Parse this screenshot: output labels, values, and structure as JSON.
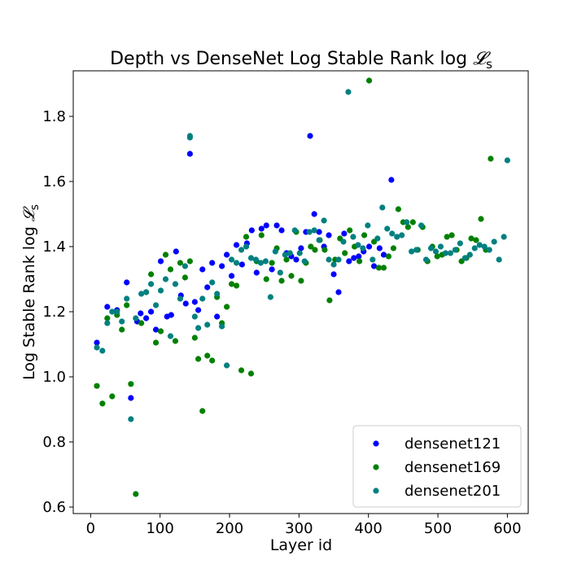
{
  "chart_data": {
    "type": "scatter",
    "title": "Depth vs DenseNet Log Stable Rank log 𝓛ₛ",
    "title_main": "Depth vs DenseNet Log Stable Rank log ",
    "title_symbol": "𝓛",
    "title_sub": "s",
    "xlabel": "Layer id",
    "ylabel": "Log Stable Rank log 𝓛ₛ",
    "ylabel_main": "Log Stable Rank log ",
    "ylabel_symbol": "𝓛",
    "ylabel_sub": "s",
    "xlim": [
      -25,
      630
    ],
    "ylim": [
      0.58,
      1.94
    ],
    "xticks": [
      0,
      100,
      200,
      300,
      400,
      500,
      600
    ],
    "yticks": [
      0.6,
      0.8,
      1.0,
      1.2,
      1.4,
      1.6,
      1.8
    ],
    "legend_position": "lower-right",
    "grid": false,
    "series": [
      {
        "name": "densenet121",
        "color": "#0000ff",
        "points": [
          [
            9,
            1.105
          ],
          [
            24,
            1.215
          ],
          [
            38,
            1.205
          ],
          [
            52,
            1.29
          ],
          [
            58,
            0.935
          ],
          [
            67,
            1.17
          ],
          [
            72,
            1.195
          ],
          [
            80,
            1.18
          ],
          [
            87,
            1.2
          ],
          [
            94,
            1.145
          ],
          [
            101,
            1.355
          ],
          [
            110,
            1.185
          ],
          [
            116,
            1.19
          ],
          [
            123,
            1.385
          ],
          [
            130,
            1.25
          ],
          [
            137,
            1.225
          ],
          [
            143,
            1.685
          ],
          [
            150,
            1.23
          ],
          [
            155,
            1.205
          ],
          [
            161,
            1.33
          ],
          [
            168,
            1.275
          ],
          [
            175,
            1.35
          ],
          [
            182,
            1.185
          ],
          [
            189,
            1.34
          ],
          [
            196,
            1.375
          ],
          [
            203,
            1.31
          ],
          [
            210,
            1.405
          ],
          [
            218,
            1.345
          ],
          [
            225,
            1.41
          ],
          [
            232,
            1.45
          ],
          [
            239,
            1.32
          ],
          [
            246,
            1.455
          ],
          [
            253,
            1.465
          ],
          [
            261,
            1.33
          ],
          [
            268,
            1.465
          ],
          [
            275,
            1.45
          ],
          [
            282,
            1.38
          ],
          [
            289,
            1.37
          ],
          [
            296,
            1.36
          ],
          [
            303,
            1.395
          ],
          [
            310,
            1.445
          ],
          [
            316,
            1.74
          ],
          [
            322,
            1.5
          ],
          [
            329,
            1.445
          ],
          [
            336,
            1.4
          ],
          [
            343,
            1.435
          ],
          [
            350,
            1.315
          ],
          [
            357,
            1.26
          ],
          [
            365,
            1.44
          ],
          [
            372,
            1.355
          ],
          [
            379,
            1.365
          ],
          [
            386,
            1.37
          ],
          [
            393,
            1.385
          ],
          [
            401,
            1.4
          ],
          [
            408,
            1.34
          ],
          [
            416,
            1.395
          ],
          [
            422,
            1.375
          ],
          [
            433,
            1.605
          ]
        ]
      },
      {
        "name": "densenet169",
        "color": "#008000",
        "points": [
          [
            9,
            0.972
          ],
          [
            17,
            0.918
          ],
          [
            24,
            1.18
          ],
          [
            31,
            0.94
          ],
          [
            38,
            1.19
          ],
          [
            45,
            1.145
          ],
          [
            52,
            1.22
          ],
          [
            58,
            0.978
          ],
          [
            65,
            0.64
          ],
          [
            73,
            1.165
          ],
          [
            80,
            1.26
          ],
          [
            87,
            1.315
          ],
          [
            94,
            1.105
          ],
          [
            101,
            1.14
          ],
          [
            108,
            1.375
          ],
          [
            115,
            1.33
          ],
          [
            122,
            1.11
          ],
          [
            129,
            1.35
          ],
          [
            136,
            1.305
          ],
          [
            143,
            1.355
          ],
          [
            150,
            1.12
          ],
          [
            155,
            1.055
          ],
          [
            161,
            0.895
          ],
          [
            168,
            1.065
          ],
          [
            175,
            1.05
          ],
          [
            182,
            1.245
          ],
          [
            189,
            1.165
          ],
          [
            196,
            1.215
          ],
          [
            203,
            1.285
          ],
          [
            210,
            1.28
          ],
          [
            217,
            1.02
          ],
          [
            224,
            1.43
          ],
          [
            231,
            1.01
          ],
          [
            239,
            1.355
          ],
          [
            246,
            1.435
          ],
          [
            253,
            1.3
          ],
          [
            261,
            1.35
          ],
          [
            268,
            1.395
          ],
          [
            275,
            1.295
          ],
          [
            282,
            1.36
          ],
          [
            289,
            1.31
          ],
          [
            296,
            1.445
          ],
          [
            303,
            1.295
          ],
          [
            310,
            1.35
          ],
          [
            317,
            1.4
          ],
          [
            323,
            1.39
          ],
          [
            330,
            1.42
          ],
          [
            337,
            1.39
          ],
          [
            344,
            1.235
          ],
          [
            352,
            1.36
          ],
          [
            359,
            1.425
          ],
          [
            366,
            1.38
          ],
          [
            373,
            1.45
          ],
          [
            380,
            1.4
          ],
          [
            387,
            1.355
          ],
          [
            394,
            1.435
          ],
          [
            401,
            1.91
          ],
          [
            408,
            1.415
          ],
          [
            415,
            1.335
          ],
          [
            422,
            1.335
          ],
          [
            429,
            1.37
          ],
          [
            436,
            1.395
          ],
          [
            443,
            1.515
          ],
          [
            450,
            1.475
          ],
          [
            457,
            1.46
          ],
          [
            464,
            1.475
          ],
          [
            471,
            1.39
          ],
          [
            478,
            1.46
          ],
          [
            485,
            1.355
          ],
          [
            492,
            1.4
          ],
          [
            499,
            1.37
          ],
          [
            506,
            1.375
          ],
          [
            513,
            1.43
          ],
          [
            520,
            1.435
          ],
          [
            527,
            1.39
          ],
          [
            534,
            1.355
          ],
          [
            541,
            1.365
          ],
          [
            548,
            1.425
          ],
          [
            555,
            1.42
          ],
          [
            562,
            1.485
          ],
          [
            569,
            1.39
          ],
          [
            576,
            1.67
          ]
        ]
      },
      {
        "name": "densenet201",
        "color": "#008080",
        "points": [
          [
            9,
            1.09
          ],
          [
            17,
            1.08
          ],
          [
            24,
            1.165
          ],
          [
            31,
            1.2
          ],
          [
            38,
            1.2
          ],
          [
            45,
            1.17
          ],
          [
            52,
            1.24
          ],
          [
            58,
            0.87
          ],
          [
            65,
            1.18
          ],
          [
            73,
            1.255
          ],
          [
            80,
            1.26
          ],
          [
            87,
            1.285
          ],
          [
            94,
            1.22
          ],
          [
            101,
            1.265
          ],
          [
            108,
            1.3
          ],
          [
            115,
            1.125
          ],
          [
            122,
            1.285
          ],
          [
            129,
            1.24
          ],
          [
            136,
            1.34
          ],
          [
            143,
            1.74
          ],
          [
            143,
            1.735
          ],
          [
            150,
            1.185
          ],
          [
            155,
            1.15
          ],
          [
            161,
            1.24
          ],
          [
            168,
            1.16
          ],
          [
            175,
            1.29
          ],
          [
            182,
            1.255
          ],
          [
            189,
            1.155
          ],
          [
            196,
            1.035
          ],
          [
            203,
            1.36
          ],
          [
            210,
            1.35
          ],
          [
            217,
            1.39
          ],
          [
            224,
            1.4
          ],
          [
            231,
            1.365
          ],
          [
            238,
            1.36
          ],
          [
            245,
            1.35
          ],
          [
            252,
            1.355
          ],
          [
            259,
            1.245
          ],
          [
            266,
            1.385
          ],
          [
            273,
            1.32
          ],
          [
            280,
            1.375
          ],
          [
            287,
            1.38
          ],
          [
            294,
            1.45
          ],
          [
            301,
            1.38
          ],
          [
            308,
            1.355
          ],
          [
            315,
            1.445
          ],
          [
            322,
            1.45
          ],
          [
            329,
            1.42
          ],
          [
            336,
            1.48
          ],
          [
            343,
            1.36
          ],
          [
            350,
            1.345
          ],
          [
            357,
            1.36
          ],
          [
            364,
            1.415
          ],
          [
            371,
            1.875
          ],
          [
            378,
            1.43
          ],
          [
            385,
            1.405
          ],
          [
            392,
            1.395
          ],
          [
            399,
            1.465
          ],
          [
            406,
            1.36
          ],
          [
            413,
            1.425
          ],
          [
            420,
            1.52
          ],
          [
            427,
            1.455
          ],
          [
            434,
            1.44
          ],
          [
            441,
            1.43
          ],
          [
            448,
            1.435
          ],
          [
            455,
            1.475
          ],
          [
            462,
            1.385
          ],
          [
            469,
            1.39
          ],
          [
            476,
            1.465
          ],
          [
            483,
            1.36
          ],
          [
            490,
            1.395
          ],
          [
            497,
            1.385
          ],
          [
            504,
            1.4
          ],
          [
            511,
            1.38
          ],
          [
            518,
            1.38
          ],
          [
            525,
            1.39
          ],
          [
            532,
            1.41
          ],
          [
            539,
            1.365
          ],
          [
            546,
            1.375
          ],
          [
            553,
            1.395
          ],
          [
            560,
            1.405
          ],
          [
            567,
            1.4
          ],
          [
            574,
            1.39
          ],
          [
            581,
            1.415
          ],
          [
            588,
            1.36
          ],
          [
            595,
            1.43
          ],
          [
            600,
            1.665
          ]
        ]
      }
    ]
  }
}
